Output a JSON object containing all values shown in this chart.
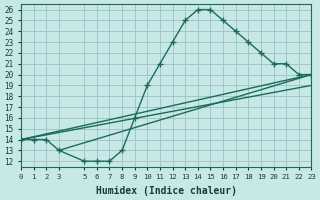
{
  "title": "",
  "xlabel": "Humidex (Indice chaleur)",
  "ylabel": "",
  "background_color": "#c8e8e8",
  "line_color": "#1a6b5a",
  "grid_color": "#a0c8c8",
  "ylim": [
    12,
    26
  ],
  "xlim": [
    0,
    23
  ],
  "yticks": [
    12,
    13,
    14,
    15,
    16,
    17,
    18,
    19,
    20,
    21,
    22,
    23,
    24,
    25,
    26
  ],
  "xticks": [
    0,
    1,
    2,
    3,
    5,
    6,
    7,
    8,
    9,
    10,
    11,
    12,
    13,
    14,
    15,
    16,
    17,
    18,
    19,
    20,
    21,
    22,
    23
  ],
  "line1_x": [
    0,
    1,
    2,
    3,
    5,
    6,
    7,
    8,
    9,
    10,
    11,
    12,
    13,
    14,
    15,
    16,
    17,
    18,
    19,
    20,
    21,
    22,
    23
  ],
  "line1_y": [
    14,
    14,
    14,
    13,
    12,
    12,
    12,
    13,
    16,
    19,
    21,
    23,
    25,
    26,
    26,
    25,
    24,
    23,
    22,
    21,
    21,
    20,
    20
  ],
  "line2_x": [
    0,
    23
  ],
  "line2_y": [
    14,
    20
  ],
  "line3_x": [
    0,
    23
  ],
  "line3_y": [
    14,
    19
  ],
  "line4_x": [
    3,
    23
  ],
  "line4_y": [
    13,
    20
  ]
}
